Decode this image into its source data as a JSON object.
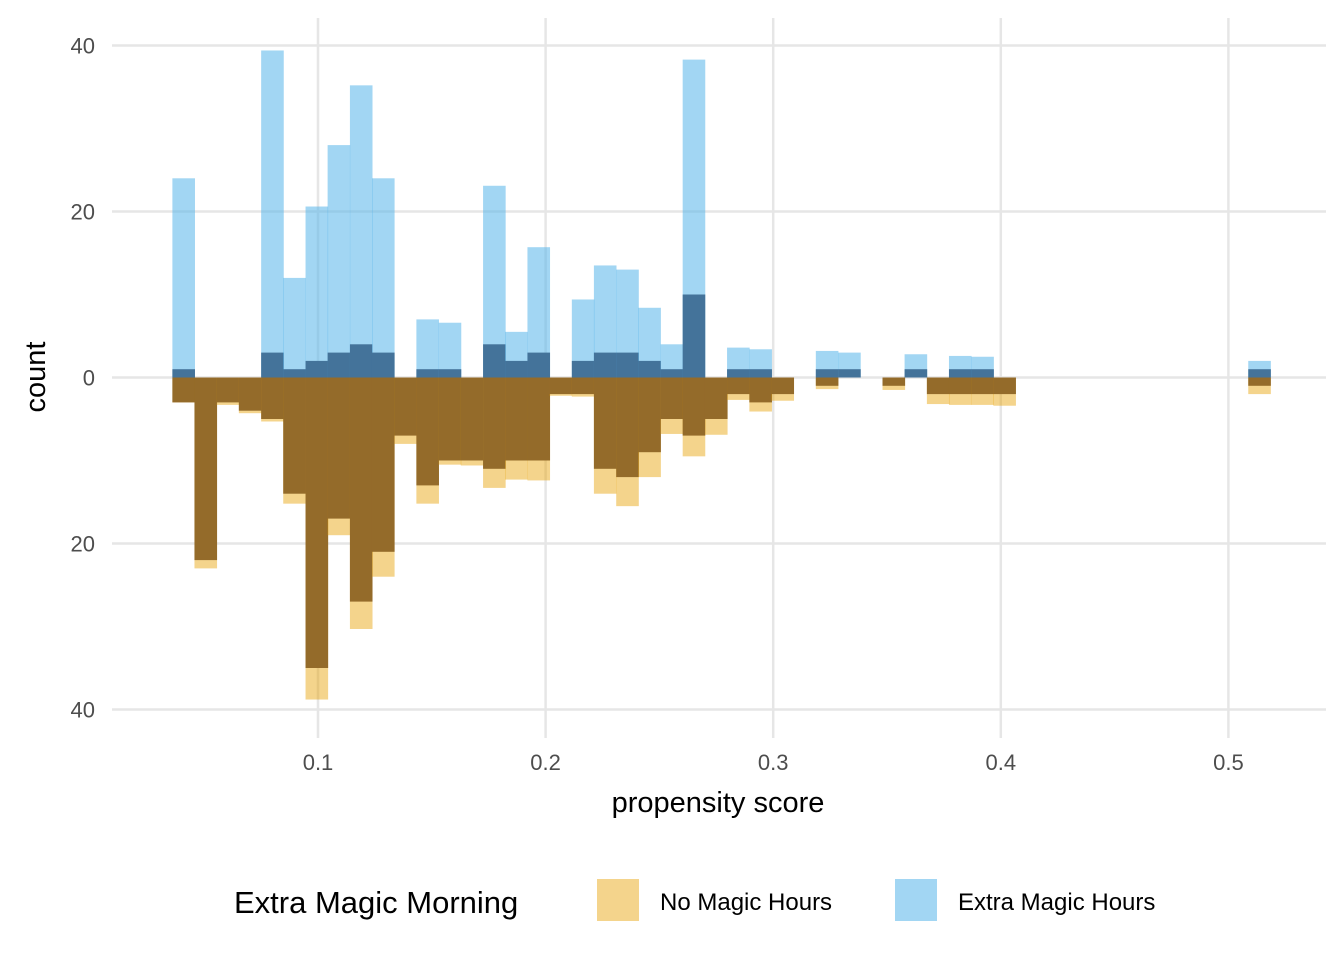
{
  "chart_data": {
    "type": "bar",
    "xlabel": "propensity score",
    "ylabel": "count",
    "xlim": [
      0.02,
      0.54
    ],
    "ylim": [
      -40,
      40
    ],
    "x_ticks": [
      0.1,
      0.2,
      0.3,
      0.4,
      0.5
    ],
    "x_tick_labels": [
      "0.1",
      "0.2",
      "0.3",
      "0.4",
      "0.5"
    ],
    "y_ticks": [
      -40,
      -20,
      0,
      20,
      40
    ],
    "y_tick_labels": [
      "40",
      "20",
      "0",
      "20",
      "40"
    ],
    "grid": true,
    "legend": {
      "title": "Extra Magic Morning",
      "position": "bottom",
      "entries": [
        "No Magic Hours",
        "Extra Magic Hours"
      ]
    },
    "bin_width": 0.00975,
    "series": [
      {
        "name": "Extra Magic Hours",
        "direction": "up",
        "color": "#56B4E9",
        "bins": [
          {
            "x": 0.0409,
            "total": 24,
            "weighted": 1
          },
          {
            "x": 0.0799,
            "total": 39.4,
            "weighted": 3
          },
          {
            "x": 0.0896,
            "total": 12,
            "weighted": 1
          },
          {
            "x": 0.0994,
            "total": 20.6,
            "weighted": 2
          },
          {
            "x": 0.1091,
            "total": 28,
            "weighted": 3
          },
          {
            "x": 0.1189,
            "total": 35.2,
            "weighted": 4
          },
          {
            "x": 0.1286,
            "total": 24,
            "weighted": 3
          },
          {
            "x": 0.1481,
            "total": 7,
            "weighted": 1
          },
          {
            "x": 0.1579,
            "total": 6.6,
            "weighted": 1
          },
          {
            "x": 0.1774,
            "total": 23.1,
            "weighted": 4
          },
          {
            "x": 0.1871,
            "total": 5.5,
            "weighted": 2
          },
          {
            "x": 0.1969,
            "total": 15.7,
            "weighted": 3
          },
          {
            "x": 0.2164,
            "total": 9.4,
            "weighted": 2
          },
          {
            "x": 0.2261,
            "total": 13.5,
            "weighted": 3
          },
          {
            "x": 0.2359,
            "total": 13,
            "weighted": 3
          },
          {
            "x": 0.2456,
            "total": 8.4,
            "weighted": 2
          },
          {
            "x": 0.2554,
            "total": 4,
            "weighted": 1
          },
          {
            "x": 0.2651,
            "total": 38.3,
            "weighted": 10
          },
          {
            "x": 0.2846,
            "total": 3.6,
            "weighted": 1
          },
          {
            "x": 0.2944,
            "total": 3.4,
            "weighted": 1
          },
          {
            "x": 0.3236,
            "total": 3.2,
            "weighted": 1
          },
          {
            "x": 0.3334,
            "total": 3,
            "weighted": 1
          },
          {
            "x": 0.3626,
            "total": 2.8,
            "weighted": 1
          },
          {
            "x": 0.3821,
            "total": 2.6,
            "weighted": 1
          },
          {
            "x": 0.3919,
            "total": 2.5,
            "weighted": 1
          },
          {
            "x": 0.5136,
            "total": 2,
            "weighted": 1
          }
        ]
      },
      {
        "name": "No Magic Hours",
        "direction": "down",
        "color": "#E69F00",
        "bins": [
          {
            "x": 0.0409,
            "total": 3,
            "weighted": 3
          },
          {
            "x": 0.0506,
            "total": 23,
            "weighted": 22
          },
          {
            "x": 0.0604,
            "total": 3.3,
            "weighted": 3
          },
          {
            "x": 0.0701,
            "total": 4.3,
            "weighted": 4
          },
          {
            "x": 0.0799,
            "total": 5.3,
            "weighted": 5
          },
          {
            "x": 0.0896,
            "total": 15.2,
            "weighted": 14
          },
          {
            "x": 0.0994,
            "total": 38.8,
            "weighted": 35
          },
          {
            "x": 0.1091,
            "total": 19,
            "weighted": 17
          },
          {
            "x": 0.1189,
            "total": 30.3,
            "weighted": 27
          },
          {
            "x": 0.1286,
            "total": 24,
            "weighted": 21
          },
          {
            "x": 0.1384,
            "total": 8,
            "weighted": 7
          },
          {
            "x": 0.1481,
            "total": 15.2,
            "weighted": 13
          },
          {
            "x": 0.1579,
            "total": 10.5,
            "weighted": 10
          },
          {
            "x": 0.1676,
            "total": 10.6,
            "weighted": 10
          },
          {
            "x": 0.1774,
            "total": 13.3,
            "weighted": 11
          },
          {
            "x": 0.1871,
            "total": 12.3,
            "weighted": 10
          },
          {
            "x": 0.1969,
            "total": 12.4,
            "weighted": 10
          },
          {
            "x": 0.2066,
            "total": 2.2,
            "weighted": 2
          },
          {
            "x": 0.2164,
            "total": 2.3,
            "weighted": 2
          },
          {
            "x": 0.2261,
            "total": 14,
            "weighted": 11
          },
          {
            "x": 0.2359,
            "total": 15.5,
            "weighted": 12
          },
          {
            "x": 0.2456,
            "total": 12,
            "weighted": 9
          },
          {
            "x": 0.2554,
            "total": 6.8,
            "weighted": 5
          },
          {
            "x": 0.2651,
            "total": 9.5,
            "weighted": 7
          },
          {
            "x": 0.2749,
            "total": 6.9,
            "weighted": 5
          },
          {
            "x": 0.2846,
            "total": 2.7,
            "weighted": 2
          },
          {
            "x": 0.2944,
            "total": 4.1,
            "weighted": 3
          },
          {
            "x": 0.3041,
            "total": 2.8,
            "weighted": 2
          },
          {
            "x": 0.3236,
            "total": 1.4,
            "weighted": 1
          },
          {
            "x": 0.3529,
            "total": 1.5,
            "weighted": 1
          },
          {
            "x": 0.3724,
            "total": 3.2,
            "weighted": 2
          },
          {
            "x": 0.3821,
            "total": 3.3,
            "weighted": 2
          },
          {
            "x": 0.3919,
            "total": 3.3,
            "weighted": 2
          },
          {
            "x": 0.4016,
            "total": 3.4,
            "weighted": 2
          },
          {
            "x": 0.5136,
            "total": 2,
            "weighted": 1
          }
        ]
      }
    ]
  }
}
